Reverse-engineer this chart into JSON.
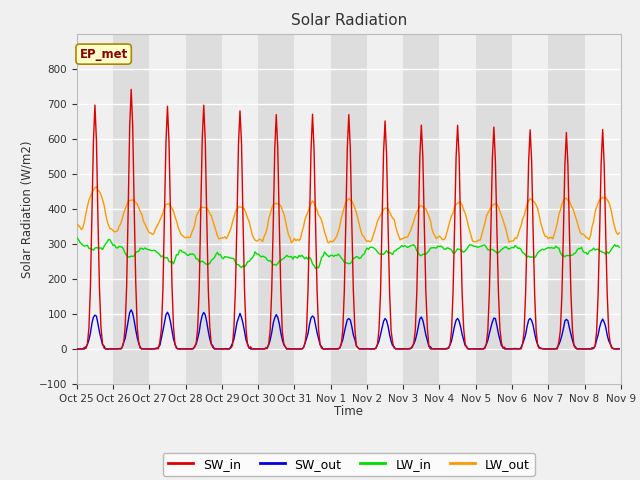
{
  "title": "Solar Radiation",
  "ylabel": "Solar Radiation (W/m2)",
  "xlabel": "Time",
  "n_days": 15,
  "ylim": [
    -100,
    900
  ],
  "yticks": [
    -100,
    0,
    100,
    200,
    300,
    400,
    500,
    600,
    700,
    800
  ],
  "fig_bg_color": "#f0f0f0",
  "plot_bg_color": "#f0f0f0",
  "band_dark": "#dddddd",
  "band_light": "#ebebeb",
  "grid_color": "white",
  "sw_in_color": "#dd0000",
  "sw_out_color": "#0000dd",
  "lw_in_color": "#00dd00",
  "lw_out_color": "#ff9900",
  "annotation_text": "EP_met",
  "annotation_bg": "#ffffcc",
  "annotation_border": "#aa8800",
  "annotation_text_color": "#880000",
  "x_tick_labels": [
    "Oct 25",
    "Oct 26",
    "Oct 27",
    "Oct 28",
    "Oct 29",
    "Oct 30",
    "Oct 31",
    "Nov 1",
    "Nov 2",
    "Nov 3",
    "Nov 4",
    "Nov 5",
    "Nov 6",
    "Nov 7",
    "Nov 8",
    "Nov 9"
  ],
  "legend_labels": [
    "SW_in",
    "SW_out",
    "LW_in",
    "LW_out"
  ],
  "sw_in_peaks": [
    695,
    740,
    695,
    698,
    680,
    668,
    665,
    668,
    650,
    638,
    635,
    630,
    625,
    615,
    620
  ],
  "sw_out_peaks": [
    100,
    110,
    105,
    105,
    100,
    100,
    95,
    90,
    85,
    88,
    88,
    90,
    88,
    85,
    85
  ],
  "lw_in_base": [
    305,
    290,
    275,
    262,
    262,
    265,
    263,
    268,
    285,
    292,
    293,
    290,
    287,
    285,
    287
  ],
  "lw_out_base": [
    345,
    338,
    325,
    318,
    312,
    308,
    308,
    308,
    308,
    312,
    312,
    312,
    318,
    322,
    325
  ],
  "lw_out_peak": [
    460,
    432,
    412,
    412,
    412,
    422,
    418,
    428,
    408,
    408,
    418,
    418,
    428,
    428,
    435
  ]
}
